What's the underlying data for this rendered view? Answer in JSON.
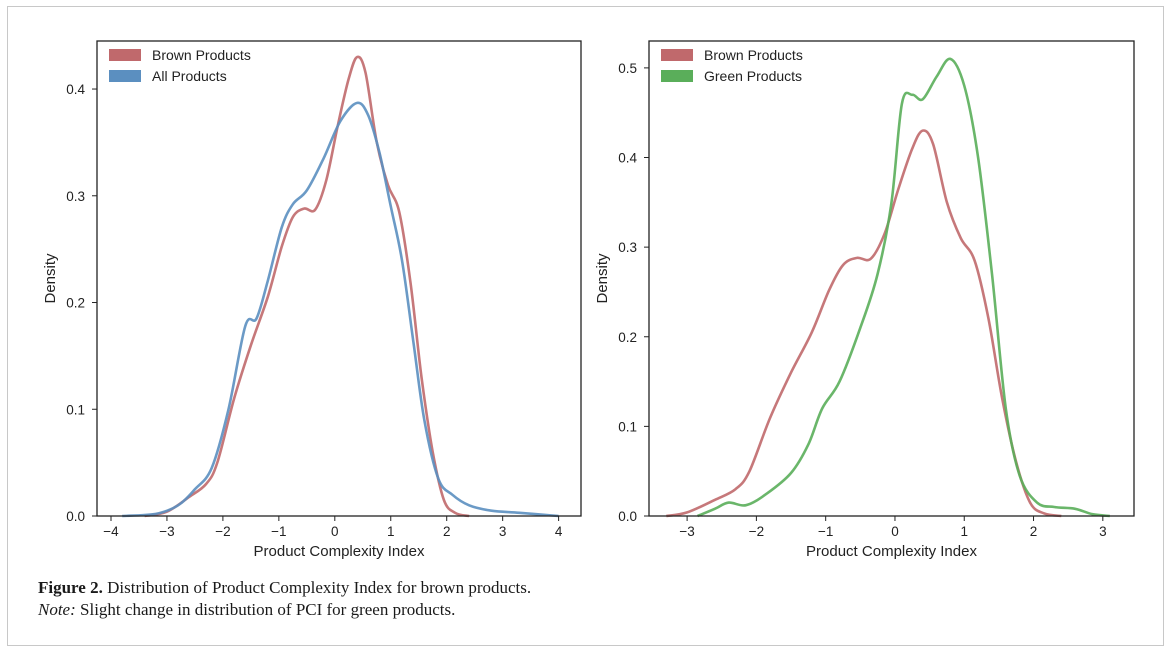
{
  "caption": {
    "figure_label": "Figure 2.",
    "figure_text": "Distribution of Product Complexity Index for brown products.",
    "note_label": "Note:",
    "note_text": "Slight change in distribution of PCI for green products."
  },
  "colors": {
    "brown": "#c0696c",
    "all": "#5b8fc0",
    "green": "#5aae5a"
  },
  "chart_data": [
    {
      "type": "line",
      "title": "",
      "xlabel": "Product Complexity Index",
      "ylabel": "Density",
      "xlim": [
        -4.25,
        4.4
      ],
      "ylim": [
        0,
        0.445
      ],
      "xticks": [
        -4,
        -3,
        -2,
        -1,
        0,
        1,
        2,
        3,
        4
      ],
      "yticks": [
        0.0,
        0.1,
        0.2,
        0.3,
        0.4
      ],
      "xticklabels": [
        "−4",
        "−3",
        "−2",
        "−1",
        "0",
        "1",
        "2",
        "3",
        "4"
      ],
      "yticklabels": [
        "0.0",
        "0.1",
        "0.2",
        "0.3",
        "0.4"
      ],
      "grid": false,
      "legend_position": "top-left",
      "series": [
        {
          "name": "Brown Products",
          "color": "#c0696c",
          "points": [
            [
              -3.4,
              0.0
            ],
            [
              -3.0,
              0.004
            ],
            [
              -2.6,
              0.018
            ],
            [
              -2.3,
              0.03
            ],
            [
              -2.1,
              0.05
            ],
            [
              -1.8,
              0.11
            ],
            [
              -1.5,
              0.16
            ],
            [
              -1.2,
              0.205
            ],
            [
              -0.95,
              0.252
            ],
            [
              -0.75,
              0.28
            ],
            [
              -0.55,
              0.288
            ],
            [
              -0.35,
              0.287
            ],
            [
              -0.15,
              0.315
            ],
            [
              0.05,
              0.365
            ],
            [
              0.25,
              0.41
            ],
            [
              0.4,
              0.43
            ],
            [
              0.55,
              0.415
            ],
            [
              0.75,
              0.35
            ],
            [
              0.95,
              0.31
            ],
            [
              1.15,
              0.285
            ],
            [
              1.35,
              0.22
            ],
            [
              1.55,
              0.13
            ],
            [
              1.75,
              0.06
            ],
            [
              1.95,
              0.015
            ],
            [
              2.15,
              0.003
            ],
            [
              2.4,
              0.0
            ]
          ]
        },
        {
          "name": "All Products",
          "color": "#5b8fc0",
          "points": [
            [
              -3.8,
              0.0
            ],
            [
              -3.2,
              0.002
            ],
            [
              -2.8,
              0.01
            ],
            [
              -2.5,
              0.025
            ],
            [
              -2.2,
              0.045
            ],
            [
              -1.9,
              0.1
            ],
            [
              -1.6,
              0.178
            ],
            [
              -1.4,
              0.185
            ],
            [
              -1.2,
              0.22
            ],
            [
              -0.95,
              0.27
            ],
            [
              -0.75,
              0.292
            ],
            [
              -0.5,
              0.305
            ],
            [
              -0.2,
              0.335
            ],
            [
              0.1,
              0.37
            ],
            [
              0.4,
              0.387
            ],
            [
              0.6,
              0.375
            ],
            [
              0.8,
              0.34
            ],
            [
              1.0,
              0.29
            ],
            [
              1.2,
              0.24
            ],
            [
              1.4,
              0.165
            ],
            [
              1.6,
              0.09
            ],
            [
              1.85,
              0.035
            ],
            [
              2.1,
              0.02
            ],
            [
              2.4,
              0.01
            ],
            [
              2.8,
              0.005
            ],
            [
              3.3,
              0.003
            ],
            [
              4.0,
              0.0
            ]
          ]
        }
      ]
    },
    {
      "type": "line",
      "title": "",
      "xlabel": "Product Complexity Index",
      "ylabel": "Density",
      "xlim": [
        -3.55,
        3.45
      ],
      "ylim": [
        0,
        0.53
      ],
      "xticks": [
        -3,
        -2,
        -1,
        0,
        1,
        2,
        3
      ],
      "yticks": [
        0.0,
        0.1,
        0.2,
        0.3,
        0.4,
        0.5
      ],
      "xticklabels": [
        "−3",
        "−2",
        "−1",
        "0",
        "1",
        "2",
        "3"
      ],
      "yticklabels": [
        "0.0",
        "0.1",
        "0.2",
        "0.3",
        "0.4",
        "0.5"
      ],
      "grid": false,
      "legend_position": "top-left",
      "series": [
        {
          "name": "Brown Products",
          "color": "#c0696c",
          "points": [
            [
              -3.3,
              0.0
            ],
            [
              -3.0,
              0.004
            ],
            [
              -2.6,
              0.018
            ],
            [
              -2.3,
              0.03
            ],
            [
              -2.1,
              0.05
            ],
            [
              -1.8,
              0.11
            ],
            [
              -1.5,
              0.16
            ],
            [
              -1.2,
              0.205
            ],
            [
              -0.95,
              0.252
            ],
            [
              -0.75,
              0.28
            ],
            [
              -0.55,
              0.288
            ],
            [
              -0.35,
              0.287
            ],
            [
              -0.15,
              0.315
            ],
            [
              0.05,
              0.365
            ],
            [
              0.25,
              0.41
            ],
            [
              0.4,
              0.43
            ],
            [
              0.55,
              0.415
            ],
            [
              0.75,
              0.35
            ],
            [
              0.95,
              0.31
            ],
            [
              1.15,
              0.285
            ],
            [
              1.35,
              0.22
            ],
            [
              1.55,
              0.13
            ],
            [
              1.75,
              0.06
            ],
            [
              1.95,
              0.015
            ],
            [
              2.15,
              0.003
            ],
            [
              2.4,
              0.0
            ]
          ]
        },
        {
          "name": "Green Products",
          "color": "#5aae5a",
          "points": [
            [
              -2.85,
              0.0
            ],
            [
              -2.6,
              0.008
            ],
            [
              -2.4,
              0.015
            ],
            [
              -2.15,
              0.012
            ],
            [
              -1.85,
              0.025
            ],
            [
              -1.5,
              0.048
            ],
            [
              -1.25,
              0.08
            ],
            [
              -1.05,
              0.12
            ],
            [
              -0.8,
              0.15
            ],
            [
              -0.5,
              0.21
            ],
            [
              -0.25,
              0.27
            ],
            [
              -0.05,
              0.35
            ],
            [
              0.1,
              0.46
            ],
            [
              0.25,
              0.47
            ],
            [
              0.4,
              0.465
            ],
            [
              0.6,
              0.49
            ],
            [
              0.8,
              0.51
            ],
            [
              1.0,
              0.48
            ],
            [
              1.2,
              0.4
            ],
            [
              1.4,
              0.27
            ],
            [
              1.6,
              0.12
            ],
            [
              1.8,
              0.045
            ],
            [
              2.05,
              0.015
            ],
            [
              2.3,
              0.01
            ],
            [
              2.6,
              0.008
            ],
            [
              2.85,
              0.002
            ],
            [
              3.1,
              0.0
            ]
          ]
        }
      ]
    }
  ]
}
